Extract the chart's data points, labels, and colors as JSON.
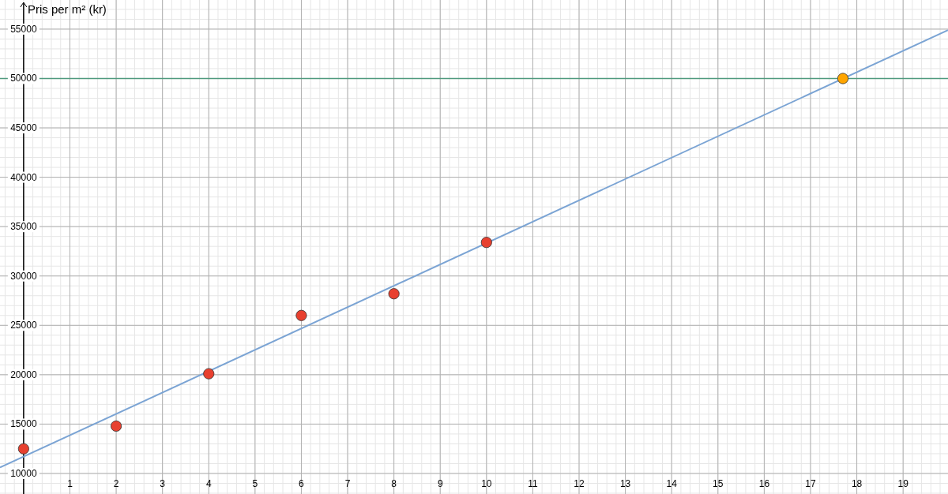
{
  "chart_data": {
    "type": "scatter",
    "ylabel": "Pris per m² (kr)",
    "xlim": [
      -0.51,
      19.97
    ],
    "ylim": [
      7920,
      57950
    ],
    "xticks": [
      1,
      2,
      3,
      4,
      5,
      6,
      7,
      8,
      9,
      10,
      11,
      12,
      13,
      14,
      15,
      16,
      17,
      18,
      19
    ],
    "yticks": [
      10000,
      15000,
      20000,
      25000,
      30000,
      35000,
      40000,
      45000,
      50000,
      55000
    ],
    "grid": true,
    "marker": "circle",
    "series": [
      {
        "type": "line",
        "marker": "none",
        "color": "#7ba4d4",
        "x": [
          -0.51,
          19.97
        ],
        "values": [
          10600,
          54900
        ]
      },
      {
        "color": "#e8402f",
        "x": [
          0,
          2,
          4,
          6,
          8,
          10
        ],
        "values": [
          12500,
          14800,
          20100,
          26000,
          28200,
          33400
        ]
      },
      {
        "color": "#ffa500",
        "x": [
          17.7
        ],
        "values": [
          50000
        ]
      }
    ],
    "ref_lines": [
      {
        "axis": "y",
        "value": 50000,
        "color": "#4f9a7e"
      }
    ]
  }
}
